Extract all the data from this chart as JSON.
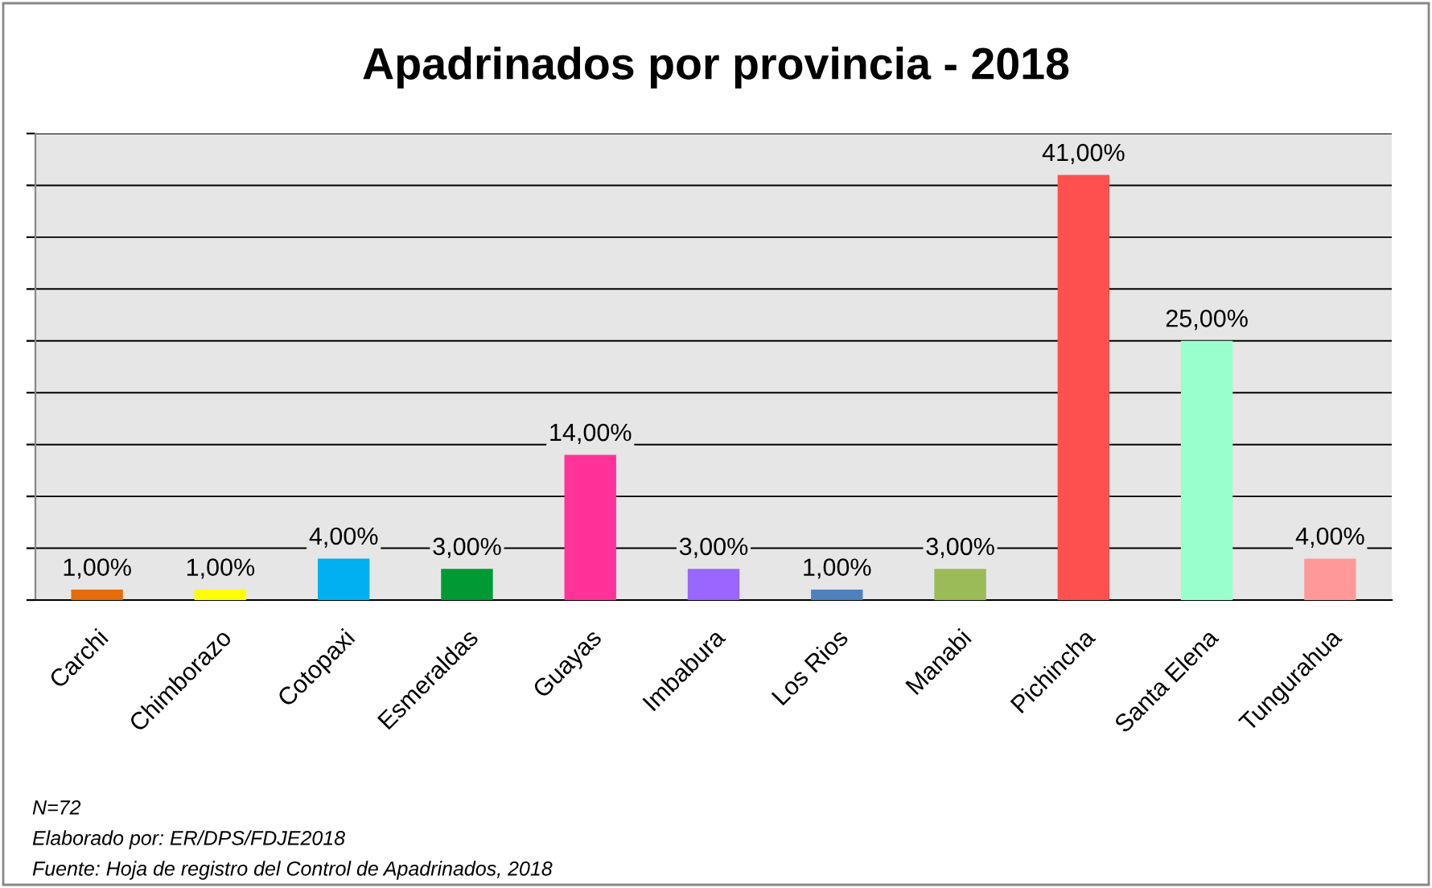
{
  "chart_data": {
    "type": "bar",
    "title": "Apadrinados por provincia - 2018",
    "categories": [
      "Carchi",
      "Chimborazo",
      "Cotopaxi",
      "Esmeraldas",
      "Guayas",
      "Imbabura",
      "Los Rios",
      "Manabi",
      "Pichincha",
      "Santa Elena",
      "Tungurahua"
    ],
    "values": [
      1,
      1,
      4,
      3,
      14,
      3,
      1,
      3,
      41,
      25,
      4
    ],
    "value_labels": [
      "1,00%",
      "1,00%",
      "4,00%",
      "3,00%",
      "14,00%",
      "3,00%",
      "1,00%",
      "3,00%",
      "41,00%",
      "25,00%",
      "4,00%"
    ],
    "colors": [
      "#e46c0a",
      "#ffff00",
      "#00b0f0",
      "#009933",
      "#ff3399",
      "#9966ff",
      "#4f81bd",
      "#9bbb59",
      "#ff5050",
      "#99ffcc",
      "#ff9999"
    ],
    "ylim": [
      0,
      45
    ],
    "yticks": [
      {
        "value": 0,
        "label": null
      },
      {
        "value": 5,
        "label": null
      },
      {
        "value": 10,
        "label": null
      },
      {
        "value": 15,
        "label": null
      },
      {
        "value": 20,
        "label": null
      },
      {
        "value": 25,
        "label": null
      },
      {
        "value": 30,
        "label": null
      },
      {
        "value": 35,
        "label": null
      },
      {
        "value": 40,
        "label": null
      },
      {
        "value": 45,
        "label": null
      }
    ],
    "tick_labels": "x",
    "grid": "y",
    "annotations": [
      "N=72",
      "Elaborado por: ER/DPS/FDJE2018",
      "Fuente: Hoja de registro del Control de Apadrinados, 2018"
    ]
  }
}
